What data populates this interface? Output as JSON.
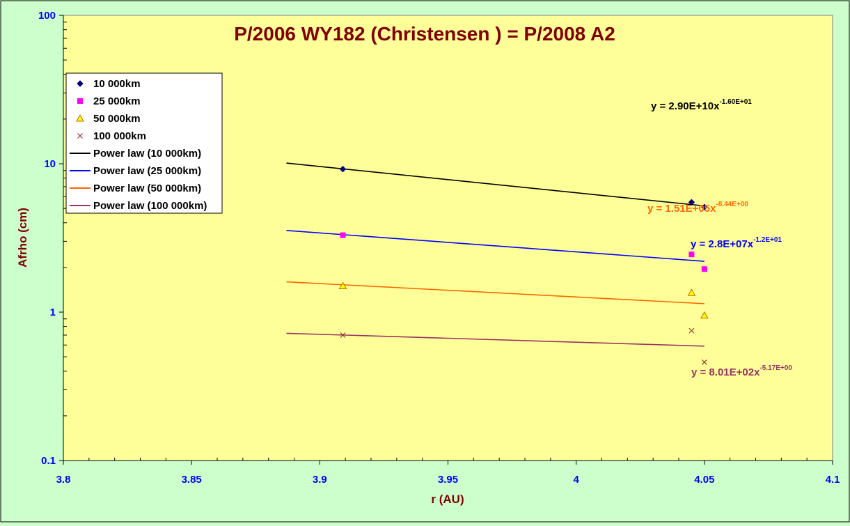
{
  "chart_data": {
    "type": "scatter",
    "title": "P/2006 WY182 (Christensen ) = P/2008 A2",
    "xlabel": "r (AU)",
    "ylabel": "Afrho (cm)",
    "xlim": [
      3.8,
      4.1
    ],
    "ylim": [
      0.1,
      100
    ],
    "yscale": "log",
    "grid": false,
    "legend_position": "top-left",
    "x_ticks": [
      "3.8",
      "3.85",
      "3.9",
      "3.95",
      "4",
      "4.05",
      "4.1"
    ],
    "y_ticks": [
      "0.1",
      "1",
      "10",
      "100"
    ],
    "colors": {
      "plot_bg": "#ffff99",
      "page_bg": "#ccffcc",
      "title": "#800000",
      "ticks": "#0000ff"
    },
    "series": [
      {
        "name": "10 000km",
        "marker": "diamond",
        "color": "#000080",
        "x": [
          3.909,
          4.045,
          4.05
        ],
        "y": [
          9.2,
          5.5,
          5.1
        ]
      },
      {
        "name": "25 000km",
        "marker": "square",
        "color": "#ff00ff",
        "x": [
          3.909,
          4.045,
          4.05
        ],
        "y": [
          3.3,
          2.45,
          1.95
        ]
      },
      {
        "name": "50 000km",
        "marker": "triangle",
        "color": "#ffff00",
        "stroke": "#cc6600",
        "x": [
          3.909,
          4.045,
          4.05
        ],
        "y": [
          1.5,
          1.35,
          0.95
        ]
      },
      {
        "name": "100 000km",
        "marker": "x",
        "color": "#993333",
        "x": [
          3.909,
          4.045,
          4.05
        ],
        "y": [
          0.7,
          0.75,
          0.46
        ]
      }
    ],
    "trendlines": [
      {
        "name": "Power law (10 000km)",
        "color": "#000000",
        "x": [
          3.887,
          4.05
        ],
        "y": [
          10.1,
          5.2
        ]
      },
      {
        "name": "Power law (25 000km)",
        "color": "#0000ff",
        "x": [
          3.887,
          4.05
        ],
        "y": [
          3.55,
          2.2
        ]
      },
      {
        "name": "Power law (50 000km)",
        "color": "#ff6600",
        "x": [
          3.887,
          4.05
        ],
        "y": [
          1.6,
          1.14
        ]
      },
      {
        "name": "Power law (100 000km)",
        "color": "#993366",
        "x": [
          3.887,
          4.05
        ],
        "y": [
          0.72,
          0.59
        ]
      }
    ],
    "equations": [
      {
        "base": "y = 2.90E+10x",
        "exp": "-1.60E+01",
        "color": "#000000"
      },
      {
        "base": "y = 1.51E+05x",
        "exp": "-8.44E+00",
        "color": "#ff6600"
      },
      {
        "base": "y = 2.8E+07x",
        "exp": "-1.2E+01",
        "color": "#0000ff"
      },
      {
        "base": "y = 8.01E+02x",
        "exp": "-5.17E+00",
        "color": "#993366"
      }
    ]
  }
}
